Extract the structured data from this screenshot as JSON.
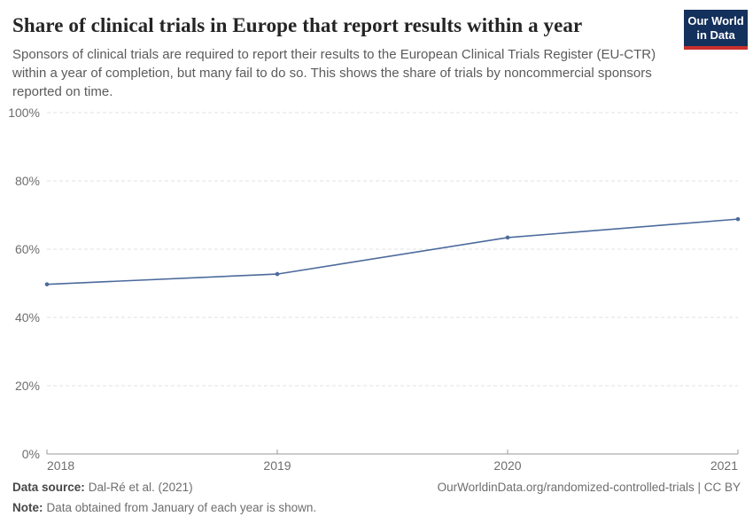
{
  "chart_data": {
    "type": "line",
    "title": "Share of clinical trials in Europe that report results within a year",
    "subtitle": "Sponsors of clinical trials are required to report their results to the European Clinical Trials Register (EU-CTR) within a year of completion, but many fail to do so. This shows the share of trials by noncommercial sponsors reported on time.",
    "x": [
      2018,
      2019,
      2020,
      2021
    ],
    "xtick_labels": [
      "2018",
      "2019",
      "2020",
      "2021"
    ],
    "series": [
      {
        "name": "Share of trials by noncommercial sponsors reported on time",
        "values": [
          49.7,
          52.7,
          63.4,
          68.8
        ]
      }
    ],
    "ylim": [
      0,
      100
    ],
    "yticks": [
      0,
      20,
      40,
      60,
      80,
      100
    ],
    "ytick_suffix": "%",
    "grid": "horizontal-dashed",
    "legend": "none",
    "line_color": "#4c6a9c",
    "gridline_color": "#e0e0e0",
    "axis_color": "#999999",
    "tick_label_color": "#6e6e6e"
  },
  "logo": {
    "line1": "Our World",
    "line2": "in Data",
    "bg_color": "#14305c",
    "accent_color": "#c9302c",
    "text_color": "#ffffff"
  },
  "footer": {
    "source_label": "Data source:",
    "source_value": "Dal-Ré et al. (2021)",
    "note_label": "Note:",
    "note_value": "Data obtained from January of each year is shown.",
    "credit": "OurWorldinData.org/randomized-controlled-trials | CC BY"
  }
}
